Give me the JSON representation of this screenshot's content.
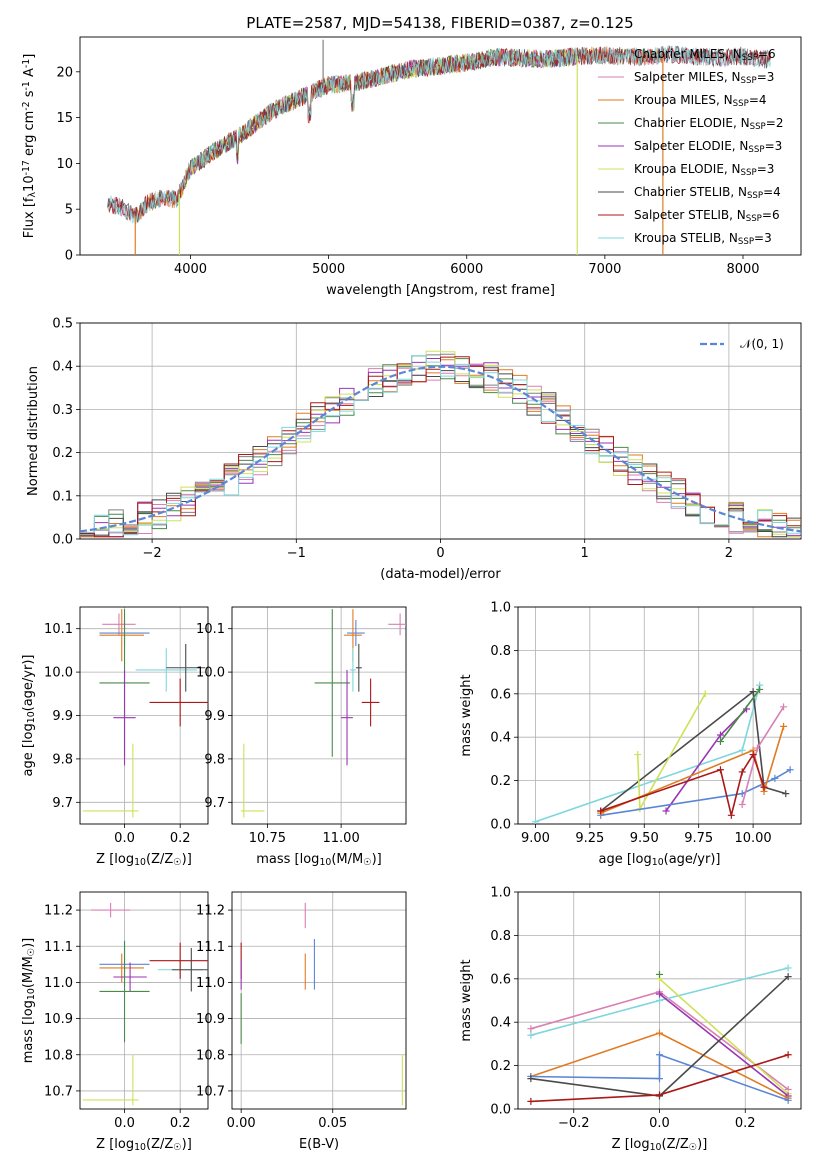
{
  "figure": {
    "title": "PLATE=2587, MJD=54138, FIBERID=0387, z=0.125"
  },
  "colors": {
    "Chabrier MILES": "#808080",
    "Salpeter MILES": "#d97fb3",
    "Kroupa MILES": "#e07b22",
    "Chabrier ELODIE": "#4a8a4a",
    "Salpeter ELODIE": "#9a35b5",
    "Kroupa ELODIE": "#cfe05a",
    "Chabrier STELIB": "#4a4a4a",
    "Salpeter STELIB": "#aa1818",
    "Kroupa STELIB": "#7fd6dc",
    "blue": "#5b86d6"
  },
  "chart_data": [
    {
      "id": "spectrum",
      "type": "line",
      "xlabel": "wavelength [Angstrom, rest frame]",
      "ylabel": "Flux [f_λ10^-17 erg cm^-2 s^-1 A^-1]",
      "xlim": [
        3200,
        8420
      ],
      "ylim": [
        0,
        23.8
      ],
      "xticks": [
        4000,
        5000,
        6000,
        7000,
        8000
      ],
      "yticks": [
        0,
        5,
        10,
        15,
        20
      ],
      "legend_position": "right",
      "legend": [
        {
          "label": "Chabrier MILES, N_SSP=6",
          "color": "Chabrier MILES"
        },
        {
          "label": "Salpeter MILES, N_SSP=3",
          "color": "Salpeter MILES"
        },
        {
          "label": "Kroupa MILES, N_SSP=4",
          "color": "Kroupa MILES"
        },
        {
          "label": "Chabrier ELODIE, N_SSP=2",
          "color": "Chabrier ELODIE"
        },
        {
          "label": "Salpeter ELODIE, N_SSP=3",
          "color": "Salpeter ELODIE"
        },
        {
          "label": "Kroupa ELODIE, N_SSP=3",
          "color": "Kroupa ELODIE"
        },
        {
          "label": "Chabrier STELIB, N_SSP=4",
          "color": "Chabrier STELIB"
        },
        {
          "label": "Salpeter STELIB, N_SSP=6",
          "color": "Salpeter STELIB"
        },
        {
          "label": "Kroupa STELIB, N_SSP=3",
          "color": "Kroupa STELIB"
        }
      ],
      "continuum": [
        [
          3400,
          5.6
        ],
        [
          3500,
          5.2
        ],
        [
          3600,
          4.2
        ],
        [
          3700,
          5.8
        ],
        [
          3800,
          6.2
        ],
        [
          3900,
          6.0
        ],
        [
          4000,
          9.5
        ],
        [
          4200,
          11.6
        ],
        [
          4400,
          13.5
        ],
        [
          4600,
          15.8
        ],
        [
          4800,
          17.2
        ],
        [
          5000,
          18.6
        ],
        [
          5200,
          18.8
        ],
        [
          5400,
          19.6
        ],
        [
          5600,
          20.3
        ],
        [
          5800,
          20.6
        ],
        [
          6000,
          21.0
        ],
        [
          6200,
          21.6
        ],
        [
          6400,
          21.5
        ],
        [
          6600,
          21.4
        ],
        [
          6800,
          21.7
        ],
        [
          7000,
          21.8
        ],
        [
          7200,
          21.6
        ],
        [
          7500,
          21.9
        ],
        [
          7800,
          21.5
        ],
        [
          8000,
          21.7
        ],
        [
          8200,
          21.3
        ]
      ],
      "dropouts": [
        {
          "x": 3600,
          "y": 0,
          "series": "Kroupa MILES"
        },
        {
          "x": 3920,
          "y": 0,
          "series": "Kroupa ELODIE"
        },
        {
          "x": 6800,
          "y": 0,
          "series": "Kroupa ELODIE"
        },
        {
          "x": 7420,
          "y": 0,
          "series": "Kroupa MILES"
        },
        {
          "x": 4960,
          "y": 23.5,
          "series": "Chabrier MILES"
        }
      ]
    },
    {
      "id": "residuals",
      "type": "line",
      "xlabel": "(data-model)/error",
      "ylabel": "Normed distribution",
      "xlim": [
        -2.5,
        2.5
      ],
      "ylim": [
        0,
        0.5
      ],
      "xticks": [
        -2,
        -1,
        0,
        1,
        2
      ],
      "yticks": [
        0.0,
        0.1,
        0.2,
        0.3,
        0.4,
        0.5
      ],
      "series": [
        {
          "name": "N(0,1)",
          "label": "𝒩(0, 1)",
          "mean": 0,
          "sigma": 1,
          "color": "blue"
        }
      ],
      "hist_bin_width": 0.1
    },
    {
      "id": "age_vs_Z",
      "type": "scatter",
      "xlabel": "Z [log10(Z/Z☉)]",
      "ylabel": "age  [log10(age/yr)]",
      "xlim": [
        -0.16,
        0.3
      ],
      "ylim": [
        9.65,
        10.15
      ],
      "xticks": [
        0.0,
        0.2
      ],
      "yticks": [
        9.7,
        9.8,
        9.9,
        10.0,
        10.1
      ],
      "points": [
        {
          "series": "Salpeter MILES",
          "x": -0.02,
          "y": 10.11,
          "xerr": 0.06,
          "yerr": 0.025
        },
        {
          "series": "blue",
          "x": 0.0,
          "y": 10.09,
          "xerr": 0.09,
          "yerr": 0.03
        },
        {
          "series": "Kroupa MILES",
          "x": -0.01,
          "y": 10.085,
          "xerr": 0.08,
          "yerr": 0.06
        },
        {
          "series": "Kroupa STELIB",
          "x": 0.15,
          "y": 10.005,
          "xerr": 0.11,
          "yerr": 0.05
        },
        {
          "series": "Chabrier STELIB",
          "x": 0.22,
          "y": 10.01,
          "xerr": 0.07,
          "yerr": 0.055
        },
        {
          "series": "Chabrier ELODIE",
          "x": 0.0,
          "y": 9.975,
          "xerr": 0.09,
          "yerr": 0.17
        },
        {
          "series": "Salpeter STELIB",
          "x": 0.2,
          "y": 9.93,
          "xerr": 0.11,
          "yerr": 0.055
        },
        {
          "series": "Salpeter ELODIE",
          "x": 0.0,
          "y": 9.895,
          "xerr": 0.04,
          "yerr": 0.11
        },
        {
          "series": "Kroupa ELODIE",
          "x": -0.05,
          "y": 9.68,
          "xerr": 0.1,
          "yerr": 0.0
        },
        {
          "series": "Kroupa ELODIE",
          "x": 0.03,
          "y": 9.75,
          "xerr": 0.0,
          "yerr": 0.085
        }
      ]
    },
    {
      "id": "age_vs_mass",
      "type": "scatter",
      "xlabel": "mass [log10(M/M☉)]",
      "ylabel": "",
      "xlim": [
        10.63,
        11.22
      ],
      "ylim": [
        9.65,
        10.15
      ],
      "xticks": [
        10.75,
        11.0
      ],
      "yticks": [
        9.7,
        9.8,
        9.9,
        10.0,
        10.1
      ],
      "points": [
        {
          "series": "Salpeter MILES",
          "x": 11.2,
          "y": 10.11,
          "xerr": 0.04,
          "yerr": 0.025
        },
        {
          "series": "blue",
          "x": 11.05,
          "y": 10.09,
          "xerr": 0.03,
          "yerr": 0.03
        },
        {
          "series": "Kroupa MILES",
          "x": 11.04,
          "y": 10.085,
          "xerr": 0.03,
          "yerr": 0.06
        },
        {
          "series": "Kroupa STELIB",
          "x": 11.04,
          "y": 10.005,
          "xerr": 0.01,
          "yerr": 0.05
        },
        {
          "series": "Chabrier STELIB",
          "x": 11.06,
          "y": 10.01,
          "xerr": 0.01,
          "yerr": 0.055
        },
        {
          "series": "Chabrier ELODIE",
          "x": 10.97,
          "y": 9.975,
          "xerr": 0.06,
          "yerr": 0.17
        },
        {
          "series": "Salpeter STELIB",
          "x": 11.1,
          "y": 9.93,
          "xerr": 0.03,
          "yerr": 0.055
        },
        {
          "series": "Salpeter ELODIE",
          "x": 11.02,
          "y": 9.895,
          "xerr": 0.02,
          "yerr": 0.11
        },
        {
          "series": "Kroupa ELODIE",
          "x": 10.7,
          "y": 9.68,
          "xerr": 0.04,
          "yerr": 0.0
        },
        {
          "series": "Kroupa ELODIE",
          "x": 10.67,
          "y": 9.75,
          "xerr": 0.0,
          "yerr": 0.085
        }
      ]
    },
    {
      "id": "weight_vs_age",
      "type": "line",
      "xlabel": "age  [log10(age/yr)]",
      "ylabel": "mass weight",
      "xlim": [
        8.92,
        10.22
      ],
      "ylim": [
        0,
        1.0
      ],
      "xticks": [
        9.0,
        9.25,
        9.5,
        9.75,
        10.0
      ],
      "yticks": [
        0.0,
        0.2,
        0.4,
        0.6,
        0.8,
        1.0
      ],
      "series": [
        {
          "name": "Kroupa STELIB",
          "x": [
            9.0,
            9.95,
            10.03
          ],
          "y": [
            0.01,
            0.34,
            0.64
          ]
        },
        {
          "name": "Chabrier STELIB",
          "x": [
            9.3,
            10.0,
            10.05,
            10.15
          ],
          "y": [
            0.06,
            0.61,
            0.17,
            0.14
          ]
        },
        {
          "name": "Kroupa ELODIE",
          "x": [
            9.47,
            9.48,
            9.78
          ],
          "y": [
            0.32,
            0.07,
            0.6
          ]
        },
        {
          "name": "Salpeter ELODIE",
          "x": [
            9.6,
            9.85,
            9.97
          ],
          "y": [
            0.06,
            0.41,
            0.53
          ]
        },
        {
          "name": "blue",
          "x": [
            9.3,
            9.95,
            10.1,
            10.17
          ],
          "y": [
            0.04,
            0.14,
            0.21,
            0.25
          ]
        },
        {
          "name": "Kroupa MILES",
          "x": [
            9.3,
            10.0,
            10.05,
            10.14
          ],
          "y": [
            0.05,
            0.34,
            0.15,
            0.45
          ]
        },
        {
          "name": "Salpeter MILES",
          "x": [
            9.95,
            10.02,
            10.14
          ],
          "y": [
            0.09,
            0.35,
            0.54
          ]
        },
        {
          "name": "Chabrier ELODIE",
          "x": [
            9.85,
            10.03
          ],
          "y": [
            0.38,
            0.62
          ]
        },
        {
          "name": "Salpeter STELIB",
          "x": [
            9.3,
            9.85,
            9.9,
            9.95,
            10.0,
            10.05
          ],
          "y": [
            0.06,
            0.25,
            0.04,
            0.24,
            0.32,
            0.17
          ]
        }
      ]
    },
    {
      "id": "mass_vs_Z",
      "type": "scatter",
      "xlabel": "Z [log10(Z/Z☉)]",
      "ylabel": "mass [log10(M/M☉)]",
      "xlim": [
        -0.16,
        0.3
      ],
      "ylim": [
        10.65,
        11.25
      ],
      "xticks": [
        0.0,
        0.2
      ],
      "yticks": [
        10.7,
        10.8,
        10.9,
        11.0,
        11.1,
        11.2
      ],
      "points": [
        {
          "series": "Salpeter MILES",
          "x": -0.05,
          "y": 11.2,
          "xerr": 0.07,
          "yerr": 0.02
        },
        {
          "series": "blue",
          "x": 0.0,
          "y": 11.05,
          "xerr": 0.09,
          "yerr": 0.06
        },
        {
          "series": "Kroupa MILES",
          "x": -0.01,
          "y": 11.04,
          "xerr": 0.08,
          "yerr": 0.04
        },
        {
          "series": "Kroupa STELIB",
          "x": 0.2,
          "y": 11.035,
          "xerr": 0.08,
          "yerr": 0.03
        },
        {
          "series": "Chabrier STELIB",
          "x": 0.24,
          "y": 11.035,
          "xerr": 0.07,
          "yerr": 0.06
        },
        {
          "series": "Salpeter STELIB",
          "x": 0.2,
          "y": 11.06,
          "xerr": 0.11,
          "yerr": 0.05
        },
        {
          "series": "Salpeter ELODIE",
          "x": 0.02,
          "y": 11.015,
          "xerr": 0.06,
          "yerr": 0.04
        },
        {
          "series": "Chabrier ELODIE",
          "x": 0.0,
          "y": 10.975,
          "xerr": 0.09,
          "yerr": 0.14
        },
        {
          "series": "Kroupa ELODIE",
          "x": -0.05,
          "y": 10.675,
          "xerr": 0.1,
          "yerr": 0.0
        },
        {
          "series": "Kroupa ELODIE",
          "x": 0.03,
          "y": 10.73,
          "xerr": 0.0,
          "yerr": 0.07
        }
      ]
    },
    {
      "id": "mass_vs_ebv",
      "type": "scatter",
      "xlabel": "E(B-V)",
      "ylabel": "",
      "xlim": [
        -0.005,
        0.09
      ],
      "ylim": [
        10.65,
        11.25
      ],
      "xticks": [
        0.0,
        0.05
      ],
      "yticks": [
        10.7,
        10.8,
        10.9,
        11.0,
        11.1,
        11.2
      ],
      "points": [
        {
          "series": "Salpeter MILES",
          "x": 0.035,
          "y": 11.185,
          "xerr": 0.0,
          "yerr": 0.035
        },
        {
          "series": "blue",
          "x": 0.04,
          "y": 11.05,
          "xerr": 0.0,
          "yerr": 0.07
        },
        {
          "series": "Kroupa MILES",
          "x": 0.035,
          "y": 11.03,
          "xerr": 0.0,
          "yerr": 0.05
        },
        {
          "series": "Salpeter STELIB",
          "x": 0.0,
          "y": 11.06,
          "xerr": 0.0,
          "yerr": 0.05
        },
        {
          "series": "Salpeter ELODIE",
          "x": 0.0,
          "y": 11.02,
          "xerr": 0.0,
          "yerr": 0.04
        },
        {
          "series": "Chabrier ELODIE",
          "x": 0.0,
          "y": 10.9,
          "xerr": 0.0,
          "yerr": 0.07
        },
        {
          "series": "Kroupa ELODIE",
          "x": 0.088,
          "y": 10.73,
          "xerr": 0.0,
          "yerr": 0.07
        }
      ]
    },
    {
      "id": "weight_vs_Z",
      "type": "line",
      "xlabel": "Z [log10(Z/Z☉)]",
      "ylabel": "mass weight",
      "xlim": [
        -0.33,
        0.33
      ],
      "ylim": [
        0,
        1.0
      ],
      "xticks": [
        -0.2,
        0.0,
        0.2
      ],
      "yticks": [
        0.0,
        0.2,
        0.4,
        0.6,
        0.8,
        1.0
      ],
      "series": [
        {
          "name": "Salpeter MILES",
          "x": [
            -0.3,
            0.0,
            0.3
          ],
          "y": [
            0.37,
            0.54,
            0.09
          ]
        },
        {
          "name": "Kroupa STELIB",
          "x": [
            -0.3,
            0.0,
            0.3
          ],
          "y": [
            0.34,
            0.5,
            0.65
          ]
        },
        {
          "name": "Kroupa ELODIE",
          "x": [
            0.0,
            0.3
          ],
          "y": [
            0.6,
            0.07
          ]
        },
        {
          "name": "Salpeter ELODIE",
          "x": [
            0.0,
            0.3
          ],
          "y": [
            0.53,
            0.06
          ]
        },
        {
          "name": "Kroupa MILES",
          "x": [
            -0.3,
            0.0,
            0.3
          ],
          "y": [
            0.15,
            0.35,
            0.05
          ]
        },
        {
          "name": "blue",
          "x": [
            -0.3,
            0.0,
            0.0,
            0.3
          ],
          "y": [
            0.15,
            0.14,
            0.25,
            0.04
          ]
        },
        {
          "name": "Chabrier STELIB",
          "x": [
            -0.3,
            0.0,
            0.3
          ],
          "y": [
            0.14,
            0.06,
            0.61
          ]
        },
        {
          "name": "Salpeter STELIB",
          "x": [
            -0.3,
            0.0,
            0.3
          ],
          "y": [
            0.035,
            0.065,
            0.25
          ]
        },
        {
          "name": "Chabrier ELODIE",
          "x": [
            0.0
          ],
          "y": [
            0.62
          ]
        }
      ]
    }
  ]
}
